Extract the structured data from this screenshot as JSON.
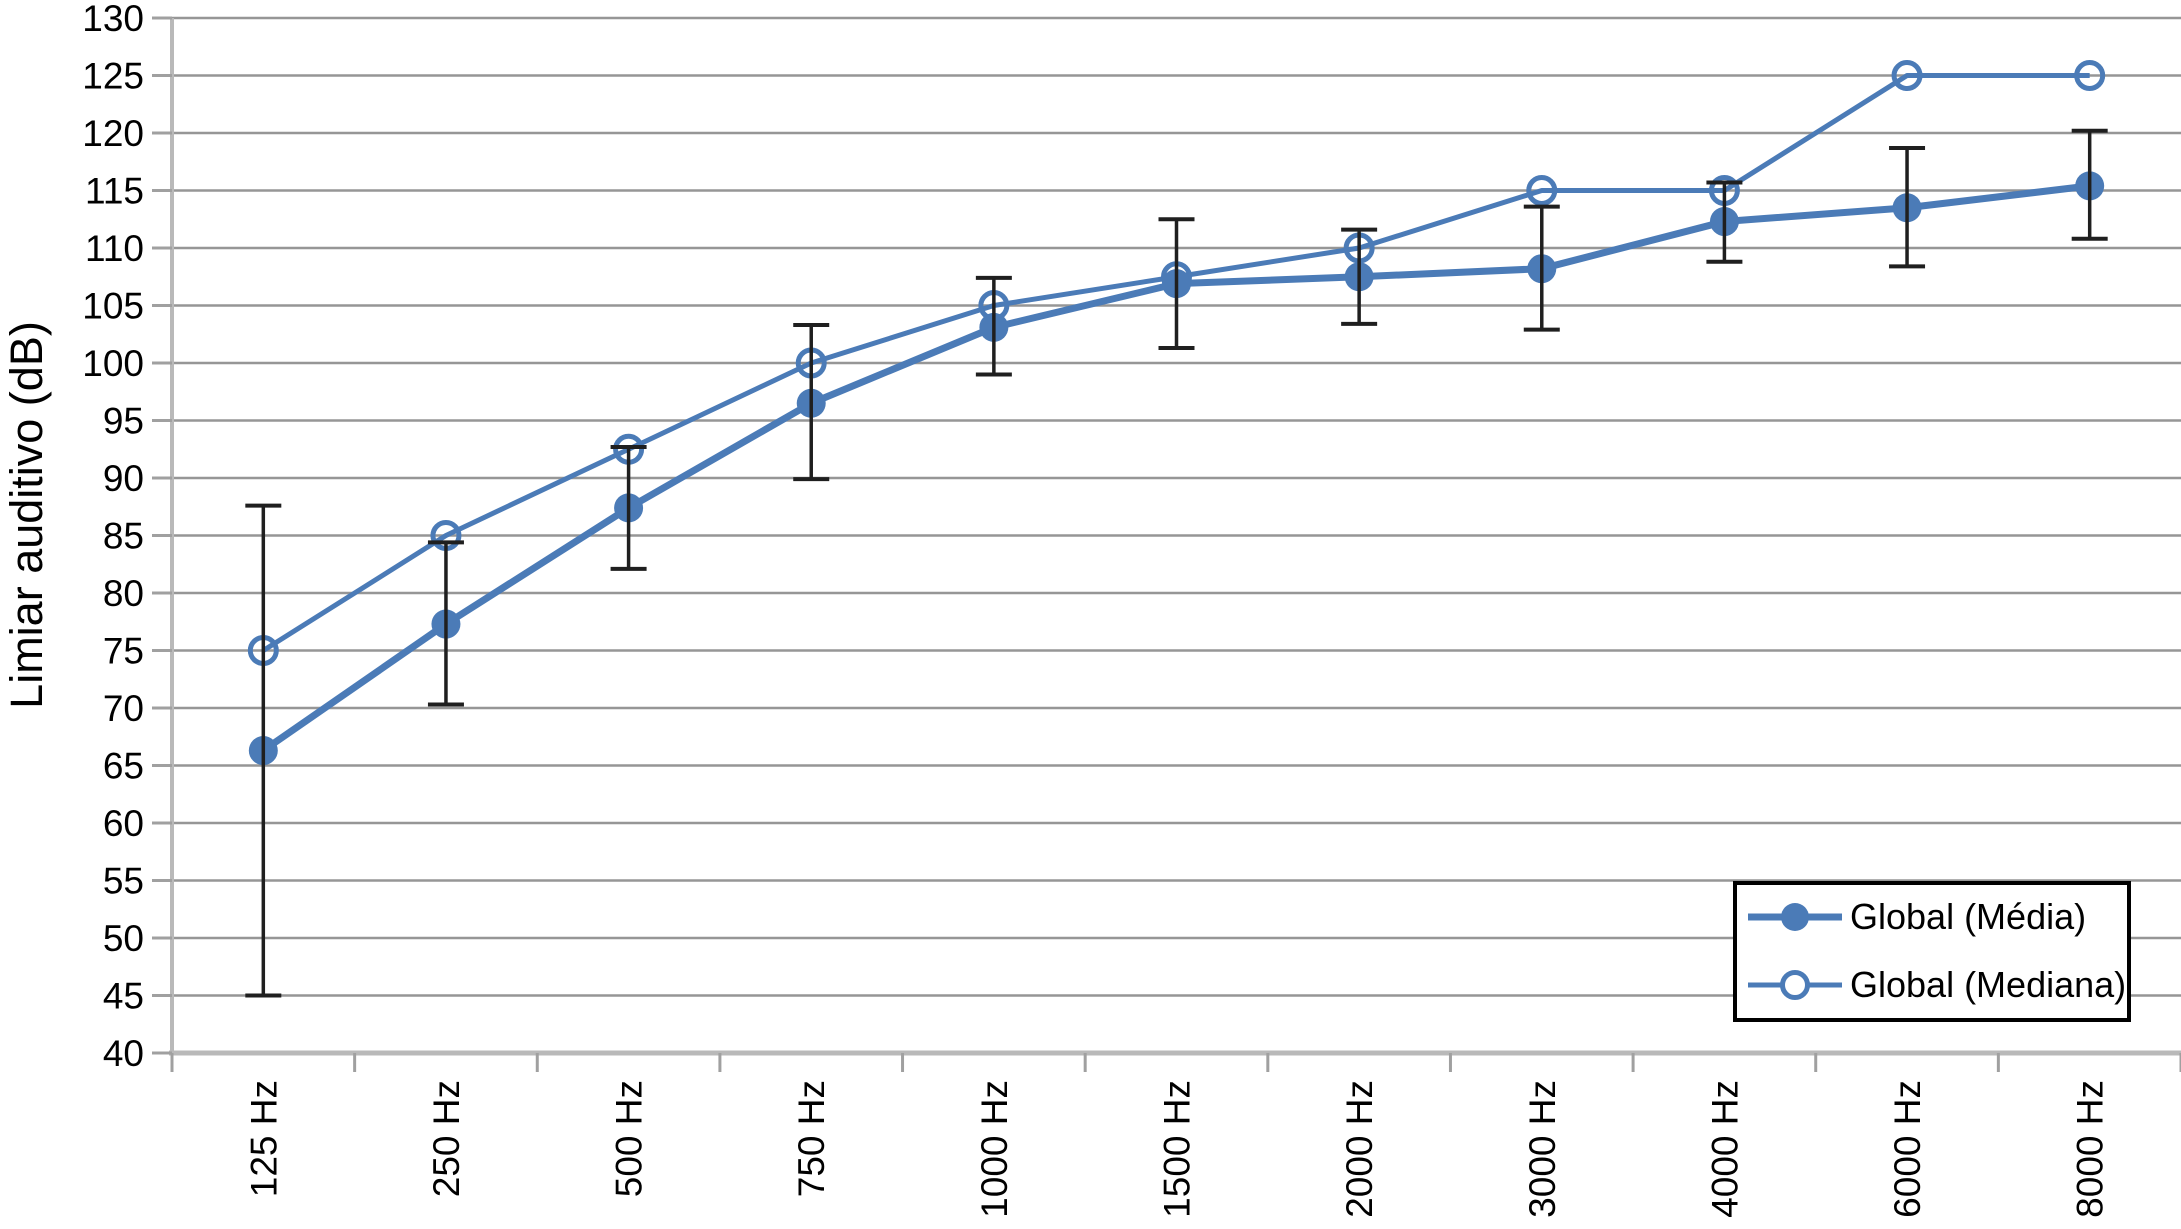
{
  "figure": {
    "background": "#ffffff"
  },
  "chart_data": {
    "type": "line",
    "title": "",
    "xlabel": "",
    "ylabel": "Limiar auditivo (dB)",
    "ylim": [
      40,
      130
    ],
    "ytick_step": 5,
    "yticks": [
      40,
      45,
      50,
      55,
      60,
      65,
      70,
      75,
      80,
      85,
      90,
      95,
      100,
      105,
      110,
      115,
      120,
      125,
      130
    ],
    "grid": true,
    "legend_position": "bottom-right",
    "categories": [
      "125 Hz",
      "250 Hz",
      "500 Hz",
      "750 Hz",
      "1000 Hz",
      "1500 Hz",
      "2000 Hz",
      "3000 Hz",
      "4000 Hz",
      "6000 Hz",
      "8000 Hz"
    ],
    "series": [
      {
        "name": "Global (Média)",
        "marker": "filled-circle",
        "values": [
          66.3,
          77.3,
          87.4,
          96.5,
          103.1,
          106.9,
          107.5,
          108.2,
          112.3,
          113.5,
          115.4
        ],
        "error_low": [
          45.0,
          70.3,
          82.1,
          89.9,
          99.0,
          101.3,
          103.4,
          102.9,
          108.8,
          108.4,
          110.8
        ],
        "error_high": [
          87.6,
          84.4,
          92.7,
          103.3,
          107.4,
          112.5,
          111.6,
          113.6,
          115.7,
          118.7,
          120.2
        ]
      },
      {
        "name": "Global (Mediana)",
        "marker": "open-circle",
        "values": [
          75,
          85,
          92.5,
          100,
          105,
          107.5,
          110,
          115,
          115,
          125,
          125
        ]
      }
    ],
    "colors": {
      "series_blue": "#4B7BB7",
      "error_bar": "#1f1f1f",
      "gridline": "#969696",
      "axis": "#b9b9b9",
      "tick": "#a0a0a0",
      "text": "#000000",
      "legend_border": "#000000",
      "legend_bg": "#ffffff"
    }
  }
}
